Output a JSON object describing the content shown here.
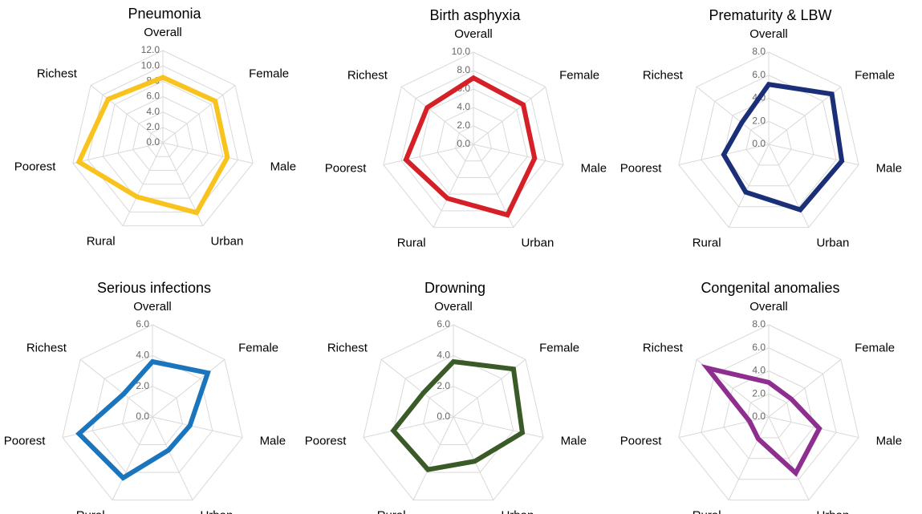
{
  "chart_data": [
    {
      "type": "radar",
      "title": "Pneumonia",
      "categories": [
        "Overall",
        "Female",
        "Male",
        "Urban",
        "Rural",
        "Poorest",
        "Richest"
      ],
      "values": [
        8.5,
        8.7,
        8.6,
        10.1,
        7.8,
        11.2,
        9.1
      ],
      "color": "#f9c31e",
      "ylim": [
        0,
        12
      ],
      "yticks": [
        {
          "value": 0,
          "label": "0.0"
        },
        {
          "value": 2,
          "label": "2.0"
        },
        {
          "value": 4,
          "label": "4.0"
        },
        {
          "value": 6,
          "label": "6.0"
        },
        {
          "value": 8,
          "label": "8.0"
        },
        {
          "value": 10,
          "label": "10.0"
        },
        {
          "value": 12,
          "label": "12.0"
        }
      ]
    },
    {
      "type": "radar",
      "title": "Birth asphyxia",
      "categories": [
        "Overall",
        "Female",
        "Male",
        "Urban",
        "Rural",
        "Poorest",
        "Richest"
      ],
      "values": [
        7.2,
        6.9,
        6.8,
        8.5,
        6.5,
        7.5,
        6.4
      ],
      "color": "#d62027",
      "ylim": [
        0,
        10
      ],
      "yticks": [
        {
          "value": 0,
          "label": "0.0"
        },
        {
          "value": 2,
          "label": "2.0"
        },
        {
          "value": 4,
          "label": "4.0"
        },
        {
          "value": 6,
          "label": "6.0"
        },
        {
          "value": 8,
          "label": "8.0"
        },
        {
          "value": 10,
          "label": "10.0"
        }
      ]
    },
    {
      "type": "radar",
      "title": "Prematurity & LBW",
      "categories": [
        "Overall",
        "Female",
        "Male",
        "Urban",
        "Rural",
        "Poorest",
        "Richest"
      ],
      "values": [
        5.2,
        7.0,
        6.5,
        6.3,
        4.6,
        4.0,
        3.0
      ],
      "color": "#1b2f78",
      "ylim": [
        0,
        8
      ],
      "yticks": [
        {
          "value": 0,
          "label": "0.0"
        },
        {
          "value": 2,
          "label": "2.0"
        },
        {
          "value": 4,
          "label": "4.0"
        },
        {
          "value": 6,
          "label": "6.0"
        },
        {
          "value": 8,
          "label": "8.0"
        }
      ]
    },
    {
      "type": "radar",
      "title": "Serious infections",
      "categories": [
        "Overall",
        "Female",
        "Male",
        "Urban",
        "Rural",
        "Poorest",
        "Richest"
      ],
      "values": [
        3.6,
        4.6,
        2.5,
        2.4,
        4.4,
        4.9,
        2.4
      ],
      "color": "#1b75bc",
      "ylim": [
        0,
        6
      ],
      "yticks": [
        {
          "value": 0,
          "label": "0.0"
        },
        {
          "value": 2,
          "label": "2.0"
        },
        {
          "value": 4,
          "label": "4.0"
        },
        {
          "value": 6,
          "label": "6.0"
        }
      ]
    },
    {
      "type": "radar",
      "title": "Drowning",
      "categories": [
        "Overall",
        "Female",
        "Male",
        "Urban",
        "Rural",
        "Poorest",
        "Richest"
      ],
      "values": [
        3.6,
        5.0,
        4.6,
        3.2,
        3.8,
        4.0,
        2.5
      ],
      "color": "#3a5a27",
      "ylim": [
        0,
        6
      ],
      "yticks": [
        {
          "value": 0,
          "label": "0.0"
        },
        {
          "value": 2,
          "label": "2.0"
        },
        {
          "value": 4,
          "label": "4.0"
        },
        {
          "value": 6,
          "label": "6.0"
        }
      ]
    },
    {
      "type": "radar",
      "title": "Congenital anomalies",
      "categories": [
        "Overall",
        "Female",
        "Male",
        "Urban",
        "Rural",
        "Poorest",
        "Richest"
      ],
      "values": [
        3.0,
        2.5,
        4.5,
        5.4,
        2.1,
        1.7,
        6.8
      ],
      "color": "#8e2e8f",
      "ylim": [
        0,
        8
      ],
      "yticks": [
        {
          "value": 0,
          "label": "0.0"
        },
        {
          "value": 2,
          "label": "2.0"
        },
        {
          "value": 4,
          "label": "4.0"
        },
        {
          "value": 6,
          "label": "6.0"
        },
        {
          "value": 8,
          "label": "8.0"
        }
      ]
    }
  ]
}
